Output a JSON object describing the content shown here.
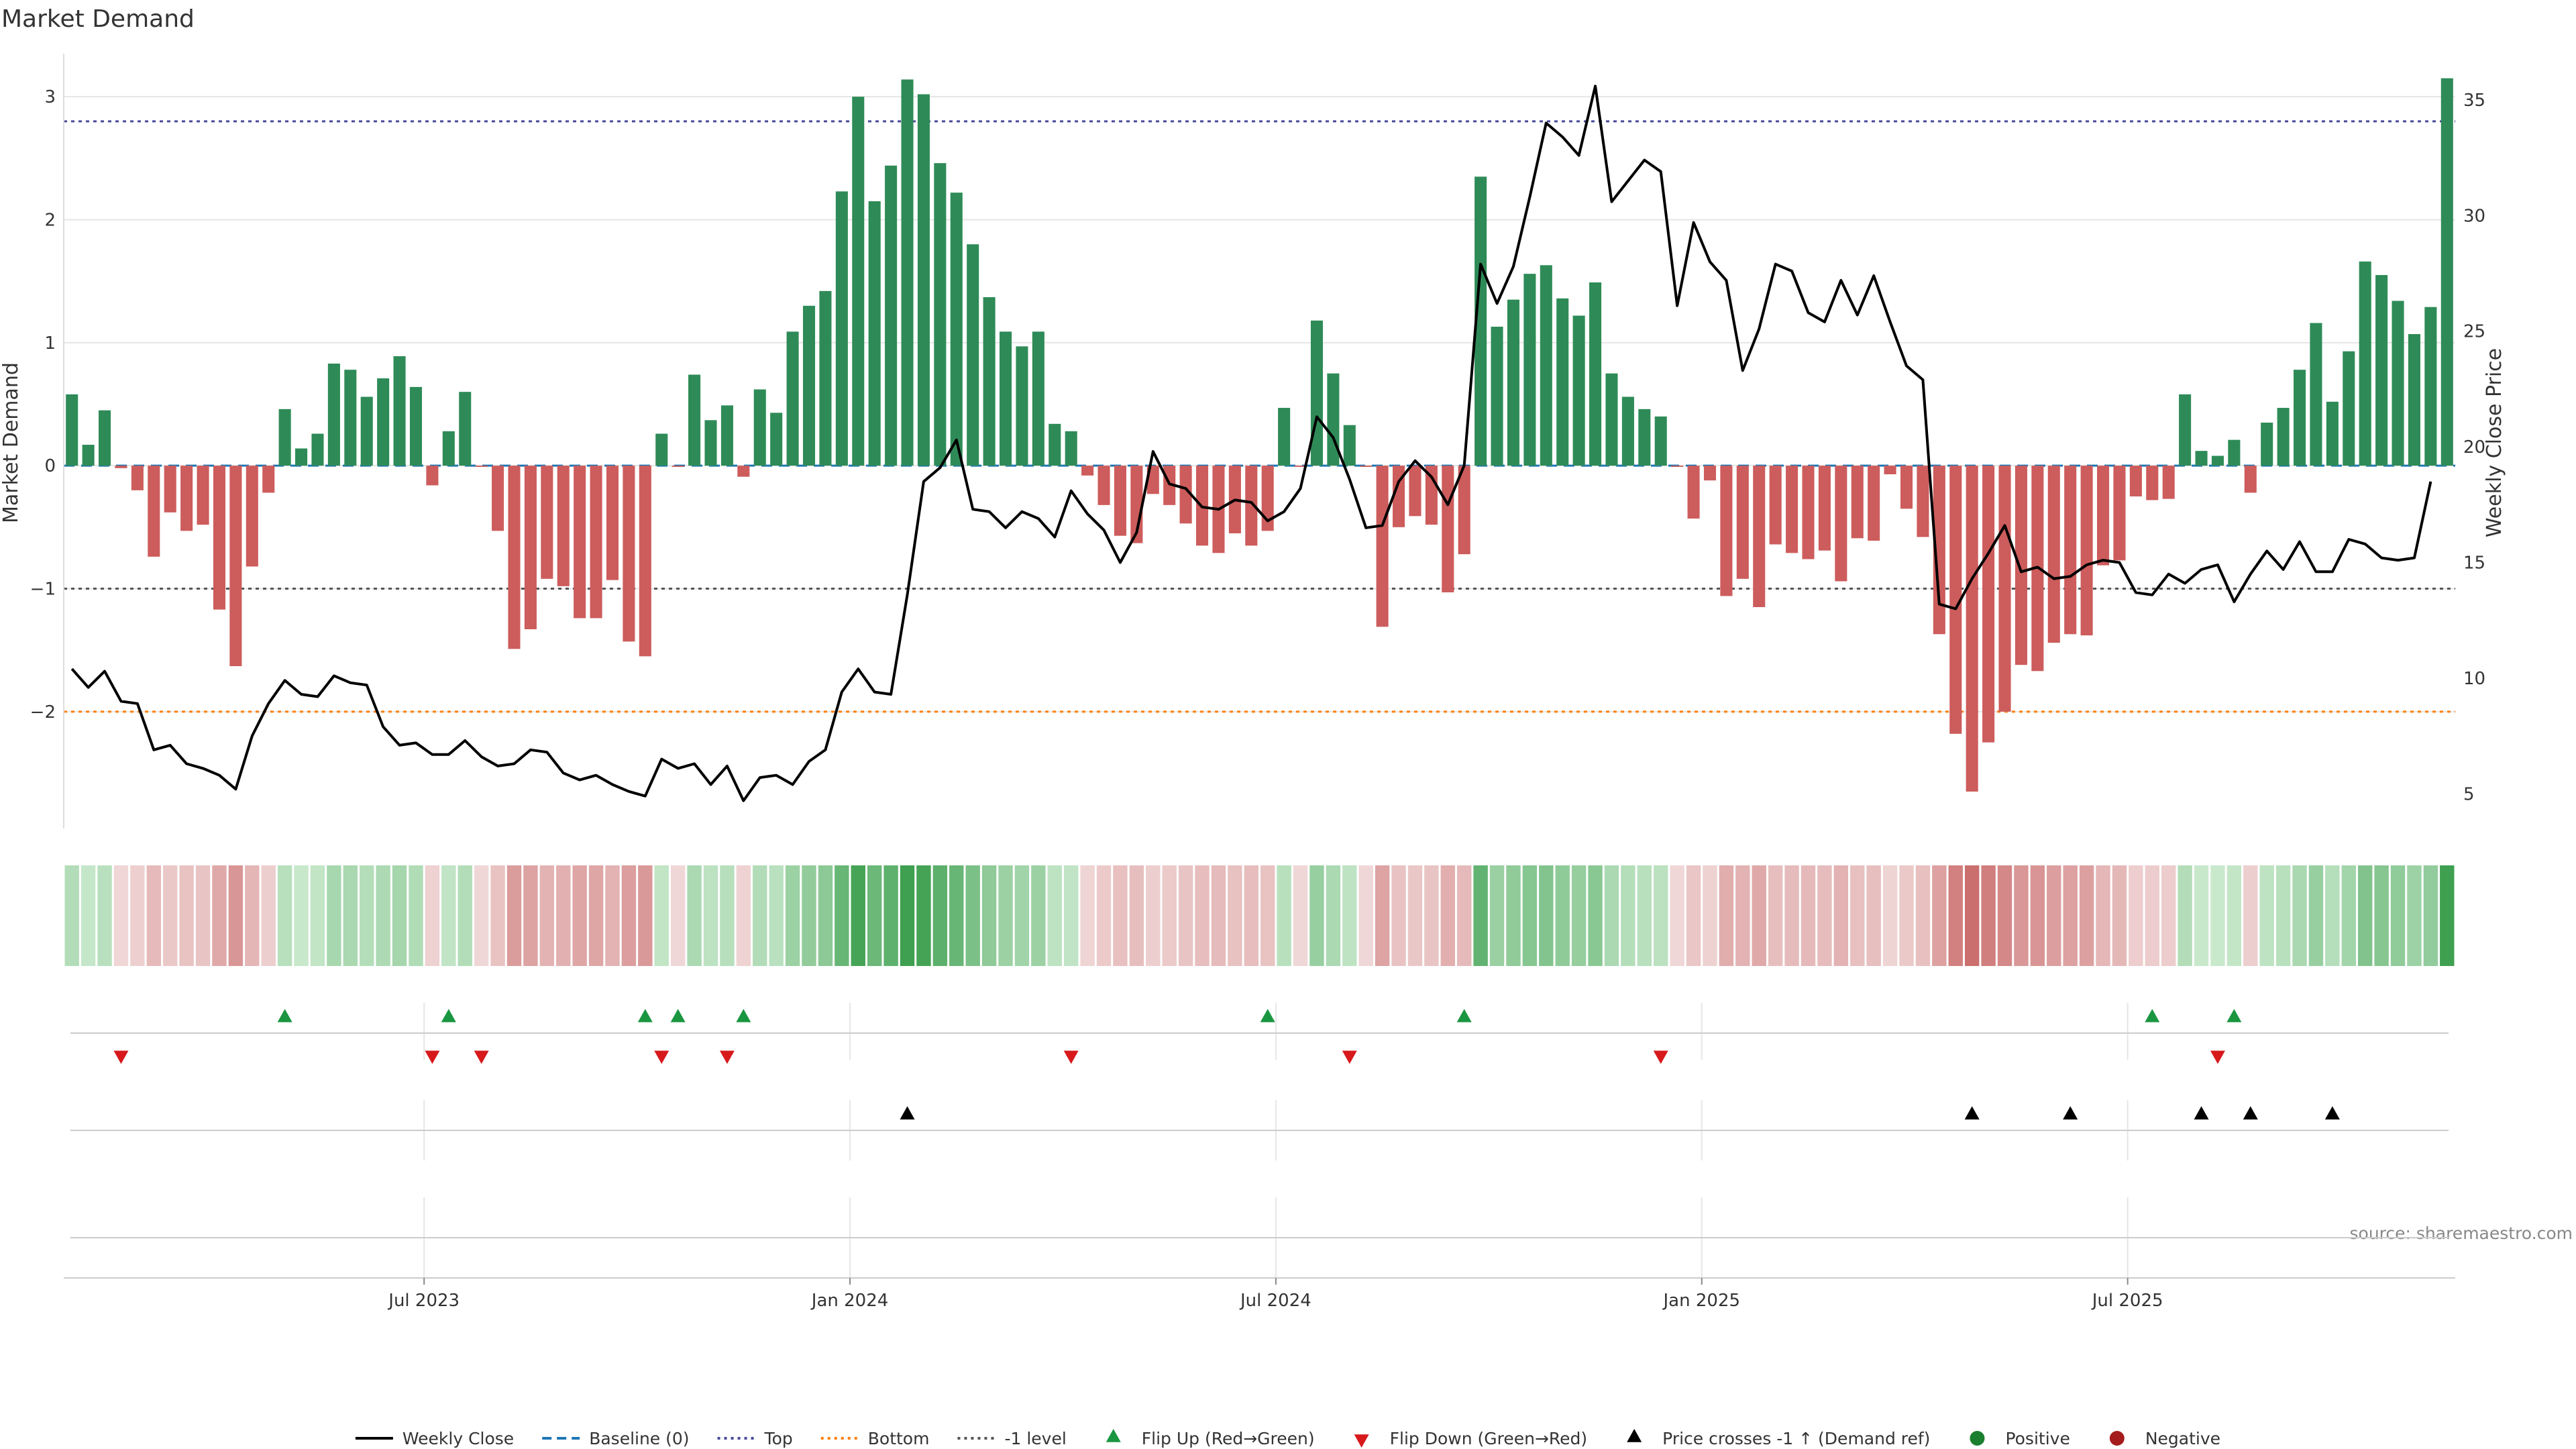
{
  "chart_data": {
    "type": "bar",
    "title": "Market Demand",
    "ylabel": "Market Demand",
    "y2label": "Weekly Close Price",
    "ylim": [
      -2.95,
      3.35
    ],
    "y2lim": [
      3.5,
      37.0
    ],
    "yticks": [
      -2,
      -1,
      0,
      1,
      2,
      3
    ],
    "y2ticks": [
      5,
      10,
      15,
      20,
      25,
      30,
      35
    ],
    "xticks": [
      "Jul 2023",
      "Jan 2024",
      "Jul 2024",
      "Jan 2025",
      "Jul 2025"
    ],
    "xtick_week_index": [
      22,
      48,
      74,
      100,
      126
    ],
    "reference_lines": {
      "top": 2.8,
      "bottom": -2.0,
      "minus_one": -1.0,
      "baseline": 0
    },
    "series": [
      {
        "name": "Market Demand",
        "type": "bar",
        "values": [
          0.58,
          0.17,
          0.45,
          -0.02,
          -0.2,
          -0.74,
          -0.38,
          -0.53,
          -0.48,
          -1.17,
          -1.63,
          -0.82,
          -0.22,
          0.46,
          0.14,
          0.26,
          0.83,
          0.78,
          0.56,
          0.71,
          0.89,
          0.64,
          -0.16,
          0.28,
          0.6,
          -0.01,
          -0.53,
          -1.49,
          -1.33,
          -0.92,
          -0.98,
          -1.24,
          -1.24,
          -0.93,
          -1.43,
          -1.55,
          0.26,
          -0.01,
          0.74,
          0.37,
          0.49,
          -0.09,
          0.62,
          0.43,
          1.09,
          1.3,
          1.42,
          2.23,
          3.0,
          2.15,
          2.44,
          3.14,
          3.02,
          2.46,
          2.22,
          1.8,
          1.37,
          1.09,
          0.97,
          1.09,
          0.34,
          0.28,
          -0.08,
          -0.32,
          -0.57,
          -0.63,
          -0.23,
          -0.32,
          -0.47,
          -0.65,
          -0.71,
          -0.55,
          -0.65,
          -0.53,
          0.47,
          -0.01,
          1.18,
          0.75,
          0.33,
          -0.01,
          -1.31,
          -0.5,
          -0.41,
          -0.48,
          -1.03,
          -0.72,
          2.35,
          1.13,
          1.35,
          1.56,
          1.63,
          1.36,
          1.22,
          1.49,
          0.75,
          0.56,
          0.46,
          0.4,
          -0.01,
          -0.43,
          -0.12,
          -1.06,
          -0.92,
          -1.15,
          -0.64,
          -0.71,
          -0.76,
          -0.69,
          -0.94,
          -0.59,
          -0.61,
          -0.07,
          -0.35,
          -0.58,
          -1.37,
          -2.18,
          -2.65,
          -2.25,
          -2.0,
          -1.62,
          -1.67,
          -1.44,
          -1.37,
          -1.38,
          -0.81,
          -0.77,
          -0.25,
          -0.28,
          -0.27,
          0.58,
          0.12,
          0.08,
          0.21,
          -0.22,
          0.35,
          0.47,
          0.78,
          1.16,
          0.52,
          0.93,
          1.66,
          1.55,
          1.34,
          1.07,
          1.29,
          3.15
        ]
      },
      {
        "name": "Weekly Close",
        "type": "line",
        "values": [
          10.4,
          9.6,
          10.3,
          9.0,
          8.9,
          6.9,
          7.1,
          6.3,
          6.1,
          5.8,
          5.2,
          7.5,
          8.9,
          9.9,
          9.3,
          9.2,
          10.1,
          9.8,
          9.7,
          7.9,
          7.1,
          7.2,
          6.7,
          6.7,
          7.3,
          6.6,
          6.2,
          6.3,
          6.9,
          6.8,
          5.9,
          5.6,
          5.8,
          5.4,
          5.1,
          4.9,
          6.5,
          6.1,
          6.3,
          5.4,
          6.2,
          4.7,
          5.7,
          5.8,
          5.4,
          6.4,
          6.9,
          9.4,
          10.4,
          9.4,
          9.3,
          13.6,
          18.5,
          19.1,
          20.3,
          17.3,
          17.2,
          16.5,
          17.2,
          16.9,
          16.1,
          18.1,
          17.1,
          16.4,
          15.0,
          16.3,
          19.8,
          18.4,
          18.2,
          17.4,
          17.3,
          17.7,
          17.6,
          16.8,
          17.2,
          18.2,
          21.3,
          20.4,
          18.6,
          16.5,
          16.6,
          18.5,
          19.4,
          18.7,
          17.5,
          19.2,
          27.9,
          26.2,
          27.8,
          30.8,
          34.0,
          33.4,
          32.6,
          35.6,
          30.6,
          31.5,
          32.4,
          31.9,
          26.1,
          29.7,
          28.0,
          27.2,
          23.3,
          25.1,
          27.9,
          27.6,
          25.8,
          25.4,
          27.2,
          25.7,
          27.4,
          25.4,
          23.5,
          22.9,
          13.2,
          13.0,
          14.3,
          15.4,
          16.6,
          14.6,
          14.8,
          14.3,
          14.4,
          14.9,
          15.1,
          15.0,
          13.7,
          13.6,
          14.5,
          14.1,
          14.7,
          14.9,
          13.3,
          14.5,
          15.5,
          14.7,
          15.9,
          14.6,
          14.6,
          16.0,
          15.8,
          15.2,
          15.1,
          15.2,
          18.5
        ]
      },
      {
        "name": "Baseline (0)",
        "type": "line-dashed"
      },
      {
        "name": "Top",
        "type": "line-dotted"
      },
      {
        "name": "Bottom",
        "type": "line-dotted"
      },
      {
        "name": "-1 level",
        "type": "line-dotted"
      }
    ],
    "events": {
      "flip_up_weeks": [
        13,
        23,
        35,
        37,
        41,
        73,
        85,
        127,
        132
      ],
      "flip_down_weeks": [
        3,
        22,
        25,
        36,
        40,
        61,
        78,
        97,
        131
      ],
      "price_cross_weeks": [
        51,
        116,
        122,
        130,
        133,
        138
      ]
    },
    "legend": {
      "placement": "bottom-center",
      "items": [
        {
          "label": "Weekly Close",
          "kind": "solid-line",
          "color": "#000000"
        },
        {
          "label": "Baseline (0)",
          "kind": "dashed-line",
          "color": "#1f77b4"
        },
        {
          "label": "Top",
          "kind": "dotted-line",
          "color": "#4a4a9a"
        },
        {
          "label": "Bottom",
          "kind": "dotted-line",
          "color": "#ff7f0e"
        },
        {
          "label": "-1 level",
          "kind": "dotted-line",
          "color": "#555555"
        },
        {
          "label": "Flip Up (Red→Green)",
          "kind": "triangle-up",
          "color": "#1a9641"
        },
        {
          "label": "Flip Down (Green→Red)",
          "kind": "triangle-down",
          "color": "#d7191c"
        },
        {
          "label": "Price crosses -1 ↑ (Demand ref)",
          "kind": "triangle-up",
          "color": "#000000"
        },
        {
          "label": "Positive",
          "kind": "dot",
          "color": "#1a7f2e"
        },
        {
          "label": "Negative",
          "kind": "dot",
          "color": "#a51c1c"
        }
      ]
    },
    "source": "source: sharemaestro.com",
    "grid": true
  },
  "colors": {
    "positive_bar": "#2e8b57",
    "negative_bar": "#cd5c5c",
    "price_line": "#000000",
    "top_line": "#4a4a9a",
    "bottom_line": "#ff7f0e",
    "minus_one_line": "#555555",
    "baseline": "#1f77b4",
    "flip_up": "#1a9641",
    "flip_down": "#d7191c",
    "cross": "#000000",
    "grid": "#e6e6e6"
  }
}
